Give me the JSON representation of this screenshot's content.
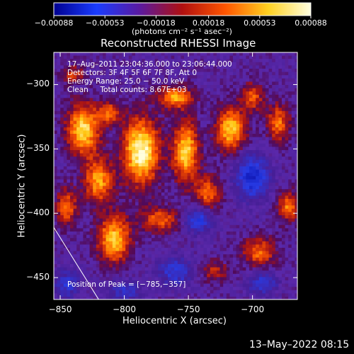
{
  "chart_data": {
    "type": "heatmap",
    "title": "Reconstructed RHESSI Image",
    "xlabel": "Heliocentric X (arcsec)",
    "ylabel": "Heliocentric Y (arcsec)",
    "xlim": [
      -855,
      -665
    ],
    "ylim": [
      -467,
      -275
    ],
    "x_ticks": [
      -850,
      -800,
      -750,
      -700
    ],
    "x_tick_labels": [
      "−850",
      "−800",
      "−750",
      "−700"
    ],
    "y_ticks": [
      -300,
      -350,
      -400,
      -450
    ],
    "y_tick_labels": [
      "−300",
      "−350",
      "−400",
      "−450"
    ],
    "colorbar": {
      "min": -0.00088,
      "max": 0.00088,
      "ticks": [
        -0.00088,
        -0.00053,
        -0.00018,
        0.00018,
        0.00053,
        0.00088
      ],
      "tick_labels": [
        "−0.00088",
        "−0.00053",
        "−0.00018",
        "0.00018",
        "0.00053",
        "0.00088"
      ],
      "units_label": "(photons cm⁻² s⁻¹ asec⁻²)",
      "colors": [
        "#000090",
        "#1a3cff",
        "#5a1aa0",
        "#b01010",
        "#ff5500",
        "#ffd020",
        "#ffffe0"
      ]
    },
    "annotations": {
      "time_range": "17–Aug–2011 23:04:36.000 to 23:06:44.000",
      "detectors": "Detectors: 3F 4F 5F 6F 7F 8F, Att 0",
      "energy": "Energy Range: 25.0 − 50.0 keV",
      "clean_line": "Clean     Total counts: 8.67E+03",
      "peak": "Position of Peak = [−785,−357]"
    },
    "peak": {
      "x": -785,
      "y": -357
    },
    "limb_line": [
      [
        -855,
        -411
      ],
      [
        -820,
        -467
      ]
    ],
    "blobs": [
      {
        "x": -832,
        "y": -335,
        "sx": 9,
        "sy": 14,
        "a": 0.85
      },
      {
        "x": -812,
        "y": -322,
        "sx": 6,
        "sy": 6,
        "a": 0.55
      },
      {
        "x": -787,
        "y": -352,
        "sx": 10,
        "sy": 18,
        "a": 1.0
      },
      {
        "x": -820,
        "y": -375,
        "sx": 8,
        "sy": 12,
        "a": 0.7
      },
      {
        "x": -845,
        "y": -395,
        "sx": 6,
        "sy": 10,
        "a": 0.55
      },
      {
        "x": -808,
        "y": -420,
        "sx": 9,
        "sy": 13,
        "a": 0.8
      },
      {
        "x": -760,
        "y": -310,
        "sx": 9,
        "sy": 6,
        "a": 0.7
      },
      {
        "x": -752,
        "y": -352,
        "sx": 7,
        "sy": 16,
        "a": 0.85
      },
      {
        "x": -772,
        "y": -405,
        "sx": 10,
        "sy": 7,
        "a": 0.55
      },
      {
        "x": -735,
        "y": -385,
        "sx": 7,
        "sy": 10,
        "a": 0.55
      },
      {
        "x": -717,
        "y": -335,
        "sx": 8,
        "sy": 12,
        "a": 0.8
      },
      {
        "x": -700,
        "y": -310,
        "sx": 6,
        "sy": 8,
        "a": 0.5
      },
      {
        "x": -680,
        "y": -330,
        "sx": 6,
        "sy": 10,
        "a": 0.6
      },
      {
        "x": -672,
        "y": -395,
        "sx": 6,
        "sy": 8,
        "a": 0.6
      },
      {
        "x": -695,
        "y": -430,
        "sx": 9,
        "sy": 8,
        "a": 0.55
      },
      {
        "x": -730,
        "y": -445,
        "sx": 8,
        "sy": 6,
        "a": 0.35
      },
      {
        "x": -840,
        "y": -292,
        "sx": 6,
        "sy": 5,
        "a": 0.4
      }
    ],
    "voids": [
      {
        "x": -700,
        "y": -372,
        "sx": 9,
        "sy": 12,
        "a": 0.75
      },
      {
        "x": -742,
        "y": -405,
        "sx": 8,
        "sy": 7,
        "a": 0.6
      },
      {
        "x": -760,
        "y": -445,
        "sx": 10,
        "sy": 8,
        "a": 0.5
      },
      {
        "x": -800,
        "y": -460,
        "sx": 10,
        "sy": 6,
        "a": 0.4
      },
      {
        "x": -692,
        "y": -455,
        "sx": 8,
        "sy": 6,
        "a": 0.5
      },
      {
        "x": -845,
        "y": -455,
        "sx": 8,
        "sy": 8,
        "a": 0.45
      }
    ]
  },
  "footer": {
    "date": "13–May–2022 08:15"
  }
}
